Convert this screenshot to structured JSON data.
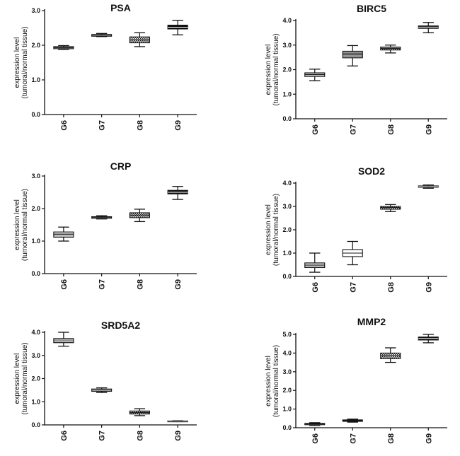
{
  "chart_data": [
    {
      "type": "box",
      "title": "PSA",
      "ylabel": [
        "expression level",
        "(tumoral/normal tissue)"
      ],
      "ylim": [
        0,
        3
      ],
      "yticks": [
        "0.0",
        "1.0",
        "2.0",
        "3.0"
      ],
      "categories": [
        "G6",
        "G7",
        "G8",
        "G9"
      ],
      "boxes": [
        {
          "min": 1.88,
          "q1": 1.9,
          "median": 1.93,
          "q3": 1.96,
          "max": 1.99
        },
        {
          "min": 2.25,
          "q1": 2.26,
          "median": 2.29,
          "q3": 2.31,
          "max": 2.34
        },
        {
          "min": 1.96,
          "q1": 2.07,
          "median": 2.15,
          "q3": 2.24,
          "max": 2.36
        },
        {
          "min": 2.3,
          "q1": 2.47,
          "median": 2.52,
          "q3": 2.58,
          "max": 2.72
        }
      ]
    },
    {
      "type": "box",
      "title": "BIRC5",
      "ylabel": [
        "expression level",
        "(tumoral/normal tissue)"
      ],
      "ylim": [
        0,
        4
      ],
      "yticks": [
        "0.0",
        "1.0",
        "2.0",
        "3.0",
        "4.0"
      ],
      "categories": [
        "G6",
        "G7",
        "G8",
        "G9"
      ],
      "boxes": [
        {
          "min": 1.55,
          "q1": 1.72,
          "median": 1.8,
          "q3": 1.87,
          "max": 2.02
        },
        {
          "min": 2.15,
          "q1": 2.48,
          "median": 2.62,
          "q3": 2.75,
          "max": 2.98
        },
        {
          "min": 2.68,
          "q1": 2.8,
          "median": 2.86,
          "q3": 2.92,
          "max": 3.0
        },
        {
          "min": 3.5,
          "q1": 3.68,
          "median": 3.73,
          "q3": 3.78,
          "max": 3.92
        }
      ]
    },
    {
      "type": "box",
      "title": "CRP",
      "ylabel": [
        "expression level",
        "(tumoral/normal tissue)"
      ],
      "ylim": [
        0,
        3
      ],
      "yticks": [
        "0.0",
        "1.0",
        "2.0",
        "3.0"
      ],
      "categories": [
        "G6",
        "G7",
        "G8",
        "G9"
      ],
      "boxes": [
        {
          "min": 1.0,
          "q1": 1.12,
          "median": 1.2,
          "q3": 1.28,
          "max": 1.43
        },
        {
          "min": 1.68,
          "q1": 1.7,
          "median": 1.73,
          "q3": 1.75,
          "max": 1.78
        },
        {
          "min": 1.6,
          "q1": 1.72,
          "median": 1.8,
          "q3": 1.87,
          "max": 1.98
        },
        {
          "min": 2.28,
          "q1": 2.45,
          "median": 2.5,
          "q3": 2.56,
          "max": 2.68
        }
      ]
    },
    {
      "type": "box",
      "title": "SOD2",
      "ylabel": [
        "expression level",
        "(tumoral/normal tissue)"
      ],
      "ylim": [
        0,
        4
      ],
      "yticks": [
        "0.0",
        "1.0",
        "2.0",
        "3.0",
        "4.0"
      ],
      "categories": [
        "G6",
        "G7",
        "G8",
        "G9"
      ],
      "boxes": [
        {
          "min": 0.18,
          "q1": 0.38,
          "median": 0.48,
          "q3": 0.58,
          "max": 1.0
        },
        {
          "min": 0.5,
          "q1": 0.85,
          "median": 1.0,
          "q3": 1.15,
          "max": 1.5
        },
        {
          "min": 2.78,
          "q1": 2.88,
          "median": 2.95,
          "q3": 3.0,
          "max": 3.08
        },
        {
          "min": 3.78,
          "q1": 3.82,
          "median": 3.85,
          "q3": 3.88,
          "max": 3.92
        }
      ]
    },
    {
      "type": "box",
      "title": "SRD5A2",
      "ylabel": [
        "expression level",
        "(tumoral/normal tissue)"
      ],
      "ylim": [
        0,
        4
      ],
      "yticks": [
        "0.0",
        "1.0",
        "2.0",
        "3.0",
        "4.0"
      ],
      "categories": [
        "G6",
        "G7",
        "G8",
        "G9"
      ],
      "boxes": [
        {
          "min": 3.4,
          "q1": 3.55,
          "median": 3.63,
          "q3": 3.73,
          "max": 4.0
        },
        {
          "min": 1.4,
          "q1": 1.45,
          "median": 1.5,
          "q3": 1.55,
          "max": 1.6
        },
        {
          "min": 0.4,
          "q1": 0.47,
          "median": 0.53,
          "q3": 0.6,
          "max": 0.7
        },
        {
          "min": 0.14,
          "q1": 0.15,
          "median": 0.17,
          "q3": 0.18,
          "max": 0.19
        }
      ]
    },
    {
      "type": "box",
      "title": "MMP2",
      "ylabel": [
        "expression level",
        "(tumoral/normal tissue)"
      ],
      "ylim": [
        0,
        5
      ],
      "yticks": [
        "0.0",
        "1.0",
        "2.0",
        "3.0",
        "4.0",
        "5.0"
      ],
      "categories": [
        "G6",
        "G7",
        "G8",
        "G9"
      ],
      "boxes": [
        {
          "min": 0.12,
          "q1": 0.16,
          "median": 0.2,
          "q3": 0.23,
          "max": 0.27
        },
        {
          "min": 0.3,
          "q1": 0.34,
          "median": 0.38,
          "q3": 0.42,
          "max": 0.46
        },
        {
          "min": 3.5,
          "q1": 3.7,
          "median": 3.85,
          "q3": 4.0,
          "max": 4.28
        },
        {
          "min": 4.55,
          "q1": 4.7,
          "median": 4.78,
          "q3": 4.86,
          "max": 5.0
        }
      ]
    }
  ]
}
